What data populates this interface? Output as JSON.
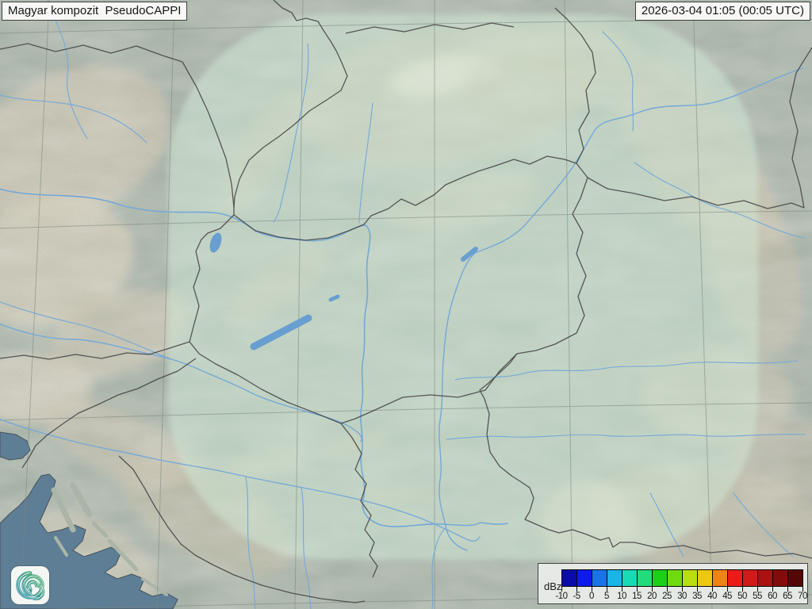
{
  "header": {
    "title": "Magyar kompozit  PseudoCAPPI",
    "timestamp": "2026-03-04 01:05 (00:05 UTC)"
  },
  "legend": {
    "unit_label": "dBz",
    "tick_labels": [
      "-10",
      "-5",
      "0",
      "5",
      "10",
      "15",
      "20",
      "25",
      "30",
      "35",
      "40",
      "45",
      "50",
      "55",
      "60",
      "65",
      "70"
    ],
    "colors": [
      "#0404aa",
      "#0814f0",
      "#1470e8",
      "#14b4e8",
      "#10dcb4",
      "#1edc78",
      "#14d214",
      "#6edc0a",
      "#b9e00a",
      "#f0c80a",
      "#f0820a",
      "#f01414",
      "#d21414",
      "#aa0a0a",
      "#820404",
      "#500000"
    ]
  },
  "theme": {
    "land": "#a7b5ab",
    "coverage_tint": "#d2ead7",
    "sea": "#5e7e95",
    "river": "#74a8d8",
    "lake": "#689fd0",
    "border": "#474747",
    "grid": "#7b857e",
    "box_bg": "#f7f8f6",
    "box_border": "#3e3e3e",
    "legend_bg": "#e8ebe8",
    "text": "#161616",
    "logo_green": "#4fae6e",
    "logo_teal": "#2b8da8"
  }
}
